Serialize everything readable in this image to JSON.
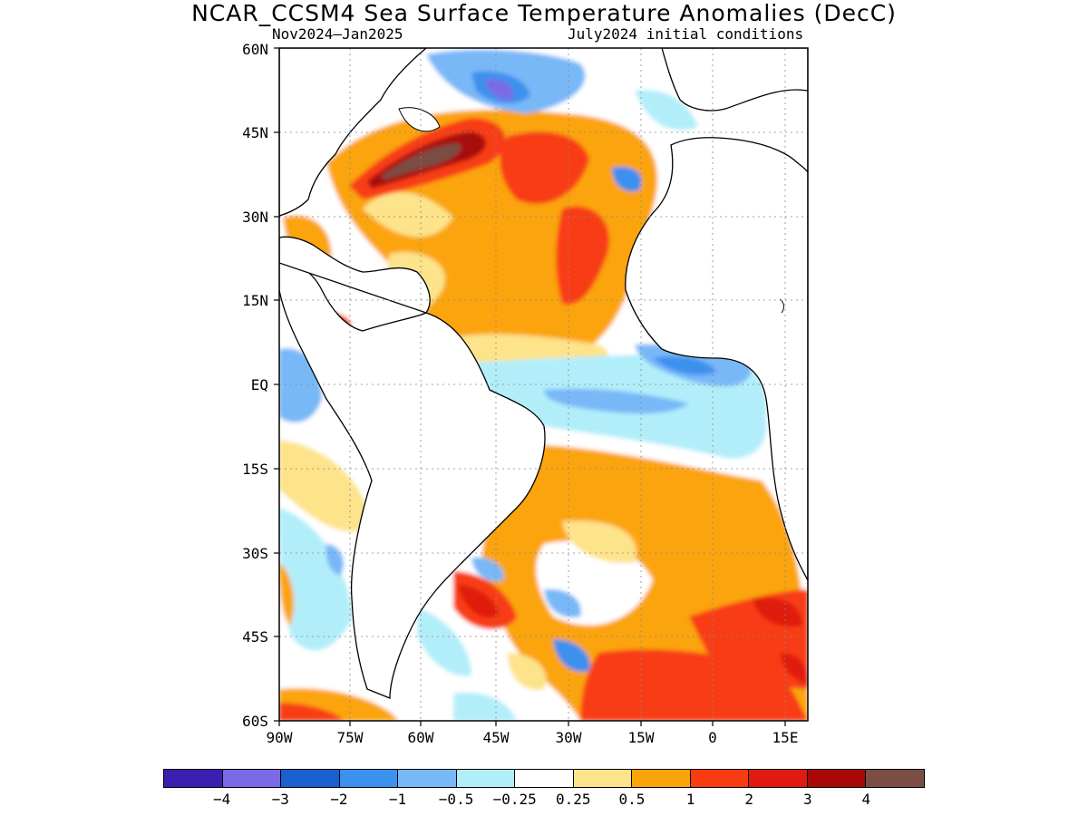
{
  "title": "NCAR_CCSM4 Sea Surface Temperature Anomalies (DecC)",
  "subtitle_left": "Nov2024–Jan2025",
  "subtitle_right": "July2024 initial conditions",
  "lat_ticks": [
    "60N",
    "45N",
    "30N",
    "15N",
    "EQ",
    "15S",
    "30S",
    "45S",
    "60S"
  ],
  "lon_ticks": [
    "90W",
    "75W",
    "60W",
    "45W",
    "30W",
    "15W",
    "0",
    "15E"
  ],
  "colorbar": {
    "colors": [
      "#3a1fb0",
      "#7a6ae6",
      "#1a5fd0",
      "#3c90ee",
      "#78b8f7",
      "#b2eefa",
      "#ffffff",
      "#fde38a",
      "#fba40a",
      "#f83c12",
      "#e01a10",
      "#a80808",
      "#7a4e44"
    ],
    "labels": [
      "−4",
      "−3",
      "−2",
      "−1",
      "−0.5",
      "−0.25",
      "0.25",
      "0.5",
      "1",
      "2",
      "3",
      "4"
    ]
  }
}
